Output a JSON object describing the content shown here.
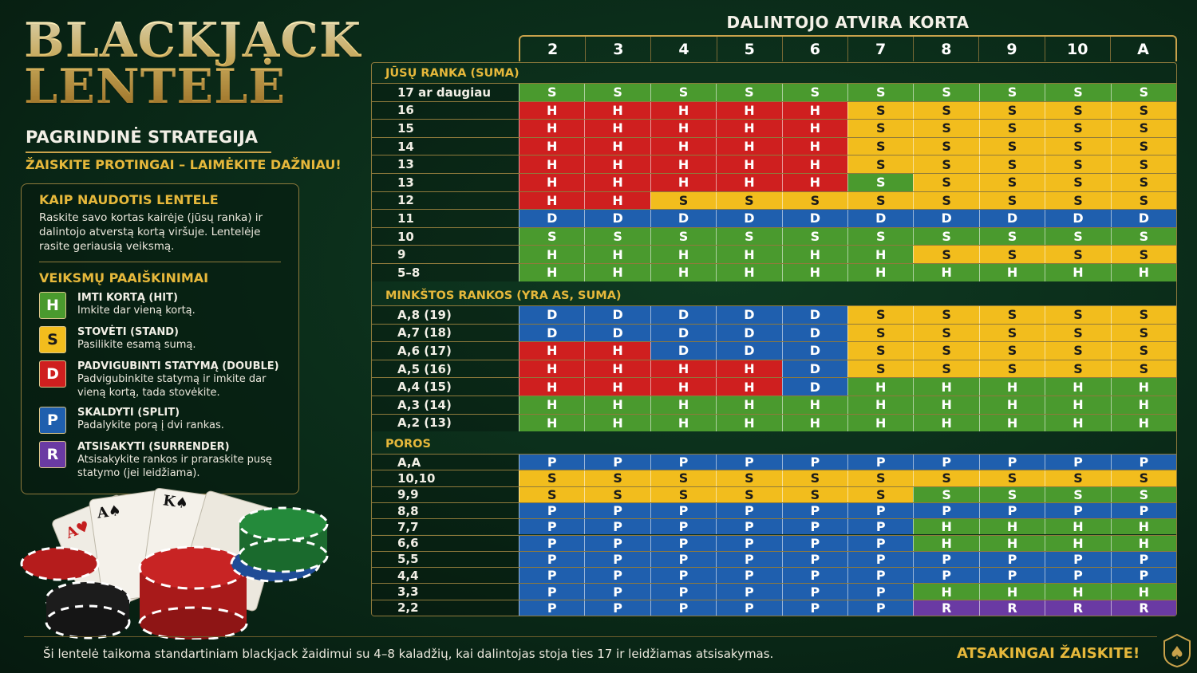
{
  "title_line1": "BLACKJACK",
  "title_line2": "LENTELĖ",
  "subtitle": "PAGRINDINĖ STRATEGIJA",
  "slogan": "ŽAISKITE PROTINGAI – LAIMĖKITE DAŽNIAU!",
  "how_to": {
    "heading": "KAIP NAUDOTIS LENTELE",
    "text": "Raskite savo kortas kairėje (jūsų ranka) ir dalintojo atverstą kortą viršuje. Lentelėje rasite geriausią veiksmą."
  },
  "legend": {
    "heading": "VEIKSMŲ PAAIŠKINIMAI",
    "items": [
      {
        "key": "H",
        "name": "IMTI KORTĄ (HIT)",
        "desc": "Imkite dar vieną kortą.",
        "color": "#4a9a2e",
        "text_color": "#ffffff"
      },
      {
        "key": "S",
        "name": "STOVĖTI (STAND)",
        "desc": "Pasilikite esamą sumą.",
        "color": "#f2bd1d",
        "text_color": "#1a1a1a"
      },
      {
        "key": "D",
        "name": "PADVIGUBINTI STATYMĄ (DOUBLE)",
        "desc": "Padvigubinkite statymą ir imkite dar vieną kortą, tada stovėkite.",
        "color": "#cf1f1f",
        "text_color": "#ffffff"
      },
      {
        "key": "P",
        "name": "SKALDYTI (SPLIT)",
        "desc": "Padalykite porą į dvi rankas.",
        "color": "#1f5fae",
        "text_color": "#ffffff"
      },
      {
        "key": "R",
        "name": "ATSISAKYTI (SURRENDER)",
        "desc": "Atsisakykite rankos ir praraskite pusę statymo (jei leidžiama).",
        "color": "#6a3aa3",
        "text_color": "#ffffff"
      }
    ]
  },
  "dealer_title": "DALINTOJO ATVIRA KORTA",
  "dealer_cards": [
    "2",
    "3",
    "4",
    "5",
    "6",
    "7",
    "8",
    "9",
    "10",
    "A"
  ],
  "sections": [
    {
      "label": "JŪSŲ RANKA (SUMA)",
      "rows": [
        {
          "label": "17 ar daugiau",
          "cells": [
            "S",
            "S",
            "S",
            "S",
            "S",
            "S",
            "S",
            "S",
            "S",
            "S"
          ],
          "colors": [
            "g",
            "g",
            "g",
            "g",
            "g",
            "g",
            "g",
            "g",
            "g",
            "g"
          ]
        },
        {
          "label": "16",
          "cells": [
            "H",
            "H",
            "H",
            "H",
            "H",
            "S",
            "S",
            "S",
            "S",
            "S"
          ],
          "colors": [
            "r",
            "r",
            "r",
            "r",
            "r",
            "y",
            "y",
            "y",
            "y",
            "y"
          ]
        },
        {
          "label": "15",
          "cells": [
            "H",
            "H",
            "H",
            "H",
            "H",
            "S",
            "S",
            "S",
            "S",
            "S"
          ],
          "colors": [
            "r",
            "r",
            "r",
            "r",
            "r",
            "y",
            "y",
            "y",
            "y",
            "y"
          ]
        },
        {
          "label": "14",
          "cells": [
            "H",
            "H",
            "H",
            "H",
            "H",
            "S",
            "S",
            "S",
            "S",
            "S"
          ],
          "colors": [
            "r",
            "r",
            "r",
            "r",
            "r",
            "y",
            "y",
            "y",
            "y",
            "y"
          ]
        },
        {
          "label": "13",
          "cells": [
            "H",
            "H",
            "H",
            "H",
            "H",
            "S",
            "S",
            "S",
            "S",
            "S"
          ],
          "colors": [
            "r",
            "r",
            "r",
            "r",
            "r",
            "y",
            "y",
            "y",
            "y",
            "y"
          ]
        },
        {
          "label": "13",
          "cells": [
            "H",
            "H",
            "H",
            "H",
            "H",
            "S",
            "S",
            "S",
            "S",
            "S"
          ],
          "colors": [
            "r",
            "r",
            "r",
            "r",
            "r",
            "g",
            "y",
            "y",
            "y",
            "y"
          ]
        },
        {
          "label": "12",
          "cells": [
            "H",
            "H",
            "S",
            "S",
            "S",
            "S",
            "S",
            "S",
            "S",
            "S"
          ],
          "colors": [
            "r",
            "r",
            "y",
            "y",
            "y",
            "y",
            "y",
            "y",
            "y",
            "y"
          ]
        },
        {
          "label": "11",
          "cells": [
            "D",
            "D",
            "D",
            "D",
            "D",
            "D",
            "D",
            "D",
            "D",
            "D"
          ],
          "colors": [
            "b",
            "b",
            "b",
            "b",
            "b",
            "b",
            "b",
            "b",
            "b",
            "b"
          ]
        },
        {
          "label": "10",
          "cells": [
            "S",
            "S",
            "S",
            "S",
            "S",
            "S",
            "S",
            "S",
            "S",
            "S"
          ],
          "colors": [
            "g",
            "g",
            "g",
            "g",
            "g",
            "g",
            "g",
            "g",
            "g",
            "g"
          ]
        },
        {
          "label": "9",
          "cells": [
            "H",
            "H",
            "H",
            "H",
            "H",
            "H",
            "S",
            "S",
            "S",
            "S"
          ],
          "colors": [
            "g",
            "g",
            "g",
            "g",
            "g",
            "g",
            "y",
            "y",
            "y",
            "y"
          ]
        },
        {
          "label": "5–8",
          "cells": [
            "H",
            "H",
            "H",
            "H",
            "H",
            "H",
            "H",
            "H",
            "H",
            "H"
          ],
          "colors": [
            "g",
            "g",
            "g",
            "g",
            "g",
            "g",
            "g",
            "g",
            "g",
            "g"
          ]
        }
      ]
    },
    {
      "label": "MINKŠTOS RANKOS (YRA AS, SUMA)",
      "rows": [
        {
          "label": "A,8 (19)",
          "cells": [
            "D",
            "D",
            "D",
            "D",
            "D",
            "S",
            "S",
            "S",
            "S",
            "S"
          ],
          "colors": [
            "b",
            "b",
            "b",
            "b",
            "b",
            "y",
            "y",
            "y",
            "y",
            "y"
          ]
        },
        {
          "label": "A,7 (18)",
          "cells": [
            "D",
            "D",
            "D",
            "D",
            "D",
            "S",
            "S",
            "S",
            "S",
            "S"
          ],
          "colors": [
            "b",
            "b",
            "b",
            "b",
            "b",
            "y",
            "y",
            "y",
            "y",
            "y"
          ]
        },
        {
          "label": "A,6 (17)",
          "cells": [
            "H",
            "H",
            "D",
            "D",
            "D",
            "S",
            "S",
            "S",
            "S",
            "S"
          ],
          "colors": [
            "r",
            "r",
            "b",
            "b",
            "b",
            "y",
            "y",
            "y",
            "y",
            "y"
          ]
        },
        {
          "label": "A,5 (16)",
          "cells": [
            "H",
            "H",
            "H",
            "H",
            "D",
            "S",
            "S",
            "S",
            "S",
            "S"
          ],
          "colors": [
            "r",
            "r",
            "r",
            "r",
            "b",
            "y",
            "y",
            "y",
            "y",
            "y"
          ]
        },
        {
          "label": "A,4 (15)",
          "cells": [
            "H",
            "H",
            "H",
            "H",
            "D",
            "H",
            "H",
            "H",
            "H",
            "H"
          ],
          "colors": [
            "r",
            "r",
            "r",
            "r",
            "b",
            "g",
            "g",
            "g",
            "g",
            "g"
          ]
        },
        {
          "label": "A,3 (14)",
          "cells": [
            "H",
            "H",
            "H",
            "H",
            "H",
            "H",
            "H",
            "H",
            "H",
            "H"
          ],
          "colors": [
            "g",
            "g",
            "g",
            "g",
            "g",
            "g",
            "g",
            "g",
            "g",
            "g"
          ]
        },
        {
          "label": "A,2 (13)",
          "cells": [
            "H",
            "H",
            "H",
            "H",
            "H",
            "H",
            "H",
            "H",
            "H",
            "H"
          ],
          "colors": [
            "g",
            "g",
            "g",
            "g",
            "g",
            "g",
            "g",
            "g",
            "g",
            "g"
          ]
        }
      ]
    },
    {
      "label": "POROS",
      "rows": [
        {
          "label": "A,A",
          "cells": [
            "P",
            "P",
            "P",
            "P",
            "P",
            "P",
            "P",
            "P",
            "P",
            "P"
          ],
          "colors": [
            "b",
            "b",
            "b",
            "b",
            "b",
            "b",
            "b",
            "b",
            "b",
            "b"
          ]
        },
        {
          "label": "10,10",
          "cells": [
            "S",
            "S",
            "S",
            "S",
            "S",
            "S",
            "S",
            "S",
            "S",
            "S"
          ],
          "colors": [
            "y",
            "y",
            "y",
            "y",
            "y",
            "y",
            "y",
            "y",
            "y",
            "y"
          ]
        },
        {
          "label": "9,9",
          "cells": [
            "S",
            "S",
            "S",
            "S",
            "S",
            "S",
            "S",
            "S",
            "S",
            "S"
          ],
          "colors": [
            "y",
            "y",
            "y",
            "y",
            "y",
            "y",
            "g",
            "g",
            "g",
            "g"
          ]
        },
        {
          "label": "8,8",
          "cells": [
            "P",
            "P",
            "P",
            "P",
            "P",
            "P",
            "P",
            "P",
            "P",
            "P"
          ],
          "colors": [
            "b",
            "b",
            "b",
            "b",
            "b",
            "b",
            "b",
            "b",
            "b",
            "b"
          ]
        },
        {
          "label": "7,7",
          "cells": [
            "P",
            "P",
            "P",
            "P",
            "P",
            "P",
            "H",
            "H",
            "H",
            "H"
          ],
          "colors": [
            "b",
            "b",
            "b",
            "b",
            "b",
            "b",
            "g",
            "g",
            "g",
            "g"
          ]
        },
        {
          "label": "6,6",
          "cells": [
            "P",
            "P",
            "P",
            "P",
            "P",
            "P",
            "H",
            "H",
            "H",
            "H"
          ],
          "colors": [
            "b",
            "b",
            "b",
            "b",
            "b",
            "b",
            "g",
            "g",
            "g",
            "g"
          ]
        },
        {
          "label": "5,5",
          "cells": [
            "P",
            "P",
            "P",
            "P",
            "P",
            "P",
            "P",
            "P",
            "P",
            "P"
          ],
          "colors": [
            "b",
            "b",
            "b",
            "b",
            "b",
            "b",
            "b",
            "b",
            "b",
            "b"
          ]
        },
        {
          "label": "4,4",
          "cells": [
            "P",
            "P",
            "P",
            "P",
            "P",
            "P",
            "P",
            "P",
            "P",
            "P"
          ],
          "colors": [
            "b",
            "b",
            "b",
            "b",
            "b",
            "b",
            "b",
            "b",
            "b",
            "b"
          ]
        },
        {
          "label": "3,3",
          "cells": [
            "P",
            "P",
            "P",
            "P",
            "P",
            "P",
            "H",
            "H",
            "H",
            "H"
          ],
          "colors": [
            "b",
            "b",
            "b",
            "b",
            "b",
            "b",
            "g",
            "g",
            "g",
            "g"
          ]
        },
        {
          "label": "2,2",
          "cells": [
            "P",
            "P",
            "P",
            "P",
            "P",
            "P",
            "R",
            "R",
            "R",
            "R"
          ],
          "colors": [
            "b",
            "b",
            "b",
            "b",
            "b",
            "b",
            "v",
            "v",
            "v",
            "v"
          ]
        }
      ]
    }
  ],
  "palette": {
    "g": "#4a9a2e",
    "y": "#f2bd1d",
    "r": "#cf1f1f",
    "b": "#1f5fae",
    "v": "#6a3aa3"
  },
  "icons": {
    "cards": "playing-cards-icon",
    "chips": "poker-chips-icon",
    "badge": "spade-badge-icon"
  },
  "footer": {
    "note": "Ši lentelė taikoma standartiniam blackjack žaidimui su 4–8 kaladžių, kai dalintojas stoja ties 17 ir leidžiamas atsisakymas.",
    "cta": "ATSAKINGAI ŽAISKITE!"
  }
}
